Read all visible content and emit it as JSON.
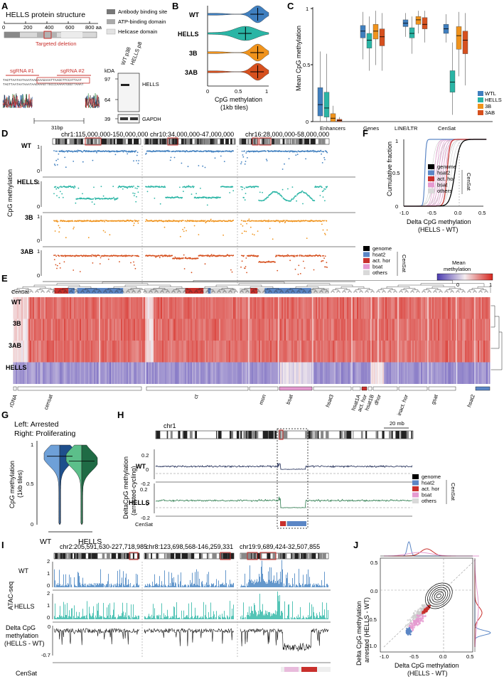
{
  "colors": {
    "wt": "#3f7fbf",
    "hells": "#2ab5a5",
    "b3": "#f0931c",
    "ab3": "#d6501e",
    "red": "#c9302c",
    "dark": "#1e2a55",
    "green": "#2e7d4f",
    "pink": "#e59ad0",
    "grey": "#d9d9d9",
    "hsat2": "#5b86c5"
  },
  "panelA": {
    "letter": "A",
    "title": "HELLS protein structure",
    "axis_ticks": [
      "0",
      "200",
      "400",
      "600",
      "800 aa"
    ],
    "deletion_label": "Targeted deletion",
    "legend": [
      "Antibody binding site",
      "ATP-binding domain",
      "Helicase domain"
    ],
    "sgrna1": "sgRNA #1",
    "sgrna2": "sgRNA #2",
    "bp": "31bp",
    "blot_kda": "kDA",
    "blot_lanes": [
      "WT p38",
      "HELLS p8"
    ],
    "blot_markers": [
      "97",
      "64",
      "39"
    ],
    "blot_bands": [
      "HELLS",
      "GAPDH"
    ]
  },
  "panelB": {
    "letter": "B",
    "rows": [
      "WT",
      "HELLS",
      "3B",
      "3AB"
    ],
    "ticks": [
      "0",
      "0.5",
      "1"
    ],
    "xlabel": "CpG methylation",
    "xlabel2": "(1kb tiles)"
  },
  "panelC": {
    "letter": "C",
    "ylabel": "Mean CpG methylation",
    "categories": [
      "Enhancers",
      "Genes",
      "LINE/LTR",
      "CenSat"
    ],
    "yticks": [
      "0",
      "0.5",
      "1"
    ],
    "legend": [
      "WTL",
      "HELLS",
      "3B",
      "3AB"
    ]
  },
  "panelD": {
    "letter": "D",
    "regions": [
      "chr1:115,000,000-150,000,000",
      "chr10:34,000,000-47,000,000",
      "chr16:28,000,000-58,000,000"
    ],
    "rows": [
      "WT",
      "HELLS",
      "3B",
      "3AB"
    ],
    "ylabel": "CpG methylation",
    "yticks": [
      "0",
      "1"
    ],
    "censat": "CenSat",
    "legend": [
      "genome",
      "hsat2",
      "act. hor",
      "bsat",
      "others"
    ],
    "legend_title": "CenSat"
  },
  "panelE": {
    "letter": "E",
    "rows": [
      "WT",
      "3B",
      "3AB",
      "HELLS"
    ],
    "groups": [
      "rDNA",
      "censat",
      "ct",
      "mon",
      "bsat",
      "hsat3",
      "hsat1A",
      "act. hor",
      "hsat1B",
      "dhor",
      "inact. hor",
      "gsat",
      "hsat2"
    ],
    "cb_title": "Mean",
    "cb_title2": "methylation",
    "cb_ticks": [
      "0",
      "1"
    ]
  },
  "panelF": {
    "letter": "F",
    "ylabel": "Cumulative fraction",
    "xlabel": "Delta CpG methylation",
    "xlabel2": "(HELLS - WT)",
    "xticks": [
      "-1.0",
      "-0.5",
      "0.0",
      "0.5"
    ],
    "yticks": [
      "0",
      "0.5",
      "1"
    ],
    "legend": [
      "genome",
      "hsat2",
      "act. hor",
      "bsat",
      "others"
    ],
    "legend_title": "CenSat"
  },
  "panelG": {
    "letter": "G",
    "title1": "Left: Arrested",
    "title2": "Right: Proliferating",
    "ylabel": "CpG methylation",
    "ylabel2": "(1kb tiles)",
    "yticks": [
      "0",
      "0.5",
      "1"
    ],
    "groups": [
      "WT",
      "HELLS"
    ]
  },
  "panelH": {
    "letter": "H",
    "chr": "chr1",
    "scale": "20 mb",
    "ylabel": "DeltaCpG methylation",
    "ylabel2": "(arrested-cycling)",
    "yticks": [
      "0.2",
      "0",
      "-0.2"
    ],
    "rows": [
      "WT",
      "HELLS"
    ],
    "censat": "CenSat",
    "legend": [
      "genome",
      "hsat2",
      "act. hor",
      "bsat",
      "others"
    ],
    "legend_title": "CenSat"
  },
  "panelI": {
    "letter": "I",
    "regions": [
      "chr2:205,591,630-227,718,985",
      "chr8:123,698,568-146,259,331",
      "chr19:9,689,424-32,507,855"
    ],
    "row1": "ATAC-seq",
    "wt": "WT",
    "hells": "HELLS",
    "yticks_atac": [
      "2",
      "1",
      "0"
    ],
    "delta1": "Delta CpG",
    "delta2": "methylation",
    "delta3": "(HELLS - WT)",
    "yticks_delta": [
      "0",
      "-0.7"
    ],
    "censat": "CenSat"
  },
  "panelJ": {
    "letter": "J",
    "ylabel1": "Delta CpG methylation",
    "ylabel2": "arrested (HELLS - WT)",
    "xlabel1": "Delta CpG methylation",
    "xlabel2": "(HELLS - WT)",
    "xticks": [
      "-1.0",
      "-0.5",
      "0.0",
      "0.5"
    ],
    "yticks": [
      "0.5",
      "0.0",
      "-0.5",
      "-1.0"
    ]
  }
}
